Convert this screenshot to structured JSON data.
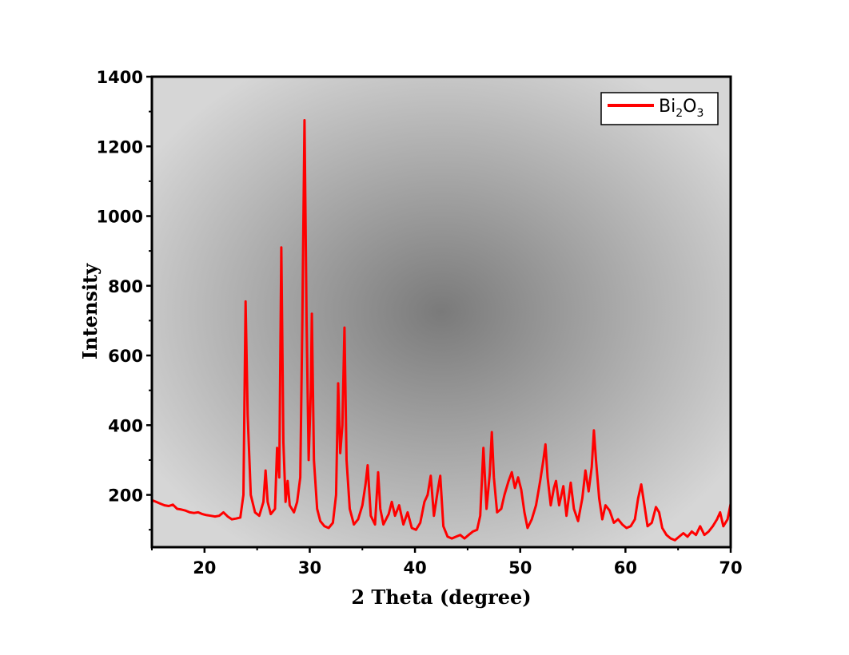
{
  "colors": {
    "series": "#ff0000",
    "axes": "#000000",
    "plot_bg_center": "#7a7a7a",
    "plot_bg_edge": "#d6d6d6"
  },
  "chart_data": {
    "type": "line",
    "title": "",
    "xlabel": "2 Theta (degree)",
    "ylabel": "Intensity",
    "xlim": [
      15,
      70
    ],
    "ylim": [
      50,
      1400
    ],
    "xticks": [
      20,
      30,
      40,
      50,
      60,
      70
    ],
    "xtick_labels": [
      "20",
      "30",
      "40",
      "50",
      "60",
      "70"
    ],
    "yticks": [
      200,
      400,
      600,
      800,
      1000,
      1200,
      1400
    ],
    "ytick_labels": [
      "200",
      "400",
      "600",
      "800",
      "1000",
      "1200",
      "1400"
    ],
    "grid": false,
    "legend": {
      "position": "top-right",
      "label_main": "Bi",
      "sub1": "2",
      "mid": "O",
      "sub2": "3"
    },
    "series": [
      {
        "name": "Bi2O3",
        "color": "#ff0000",
        "points": [
          [
            15.0,
            185
          ],
          [
            15.4,
            180
          ],
          [
            15.8,
            175
          ],
          [
            16.2,
            170
          ],
          [
            16.6,
            168
          ],
          [
            17.0,
            172
          ],
          [
            17.4,
            160
          ],
          [
            17.8,
            158
          ],
          [
            18.2,
            155
          ],
          [
            18.6,
            150
          ],
          [
            19.0,
            148
          ],
          [
            19.4,
            150
          ],
          [
            19.8,
            145
          ],
          [
            20.2,
            142
          ],
          [
            20.6,
            140
          ],
          [
            21.0,
            138
          ],
          [
            21.4,
            140
          ],
          [
            21.8,
            150
          ],
          [
            22.2,
            138
          ],
          [
            22.6,
            130
          ],
          [
            23.0,
            132
          ],
          [
            23.4,
            135
          ],
          [
            23.7,
            200
          ],
          [
            23.9,
            755
          ],
          [
            24.1,
            430
          ],
          [
            24.4,
            200
          ],
          [
            24.8,
            150
          ],
          [
            25.2,
            140
          ],
          [
            25.6,
            180
          ],
          [
            25.8,
            270
          ],
          [
            26.0,
            180
          ],
          [
            26.3,
            145
          ],
          [
            26.7,
            160
          ],
          [
            26.9,
            335
          ],
          [
            27.1,
            250
          ],
          [
            27.3,
            910
          ],
          [
            27.5,
            350
          ],
          [
            27.7,
            180
          ],
          [
            27.9,
            240
          ],
          [
            28.1,
            170
          ],
          [
            28.5,
            150
          ],
          [
            28.8,
            180
          ],
          [
            29.1,
            250
          ],
          [
            29.3,
            700
          ],
          [
            29.5,
            1275
          ],
          [
            29.7,
            700
          ],
          [
            29.9,
            300
          ],
          [
            30.1,
            500
          ],
          [
            30.2,
            720
          ],
          [
            30.4,
            300
          ],
          [
            30.7,
            160
          ],
          [
            31.0,
            125
          ],
          [
            31.4,
            110
          ],
          [
            31.8,
            105
          ],
          [
            32.2,
            120
          ],
          [
            32.5,
            200
          ],
          [
            32.7,
            520
          ],
          [
            32.9,
            320
          ],
          [
            33.1,
            400
          ],
          [
            33.3,
            680
          ],
          [
            33.5,
            300
          ],
          [
            33.8,
            160
          ],
          [
            34.2,
            115
          ],
          [
            34.6,
            130
          ],
          [
            35.0,
            170
          ],
          [
            35.3,
            230
          ],
          [
            35.5,
            285
          ],
          [
            35.8,
            140
          ],
          [
            36.2,
            115
          ],
          [
            36.5,
            265
          ],
          [
            36.7,
            160
          ],
          [
            37.0,
            115
          ],
          [
            37.5,
            145
          ],
          [
            37.8,
            180
          ],
          [
            38.1,
            140
          ],
          [
            38.5,
            170
          ],
          [
            38.9,
            115
          ],
          [
            39.3,
            150
          ],
          [
            39.7,
            105
          ],
          [
            40.1,
            100
          ],
          [
            40.5,
            120
          ],
          [
            40.9,
            180
          ],
          [
            41.2,
            200
          ],
          [
            41.5,
            255
          ],
          [
            41.8,
            140
          ],
          [
            42.2,
            220
          ],
          [
            42.4,
            255
          ],
          [
            42.7,
            110
          ],
          [
            43.1,
            80
          ],
          [
            43.5,
            75
          ],
          [
            43.9,
            80
          ],
          [
            44.3,
            85
          ],
          [
            44.7,
            75
          ],
          [
            45.1,
            85
          ],
          [
            45.5,
            95
          ],
          [
            45.9,
            100
          ],
          [
            46.2,
            140
          ],
          [
            46.5,
            335
          ],
          [
            46.8,
            160
          ],
          [
            47.1,
            260
          ],
          [
            47.3,
            380
          ],
          [
            47.5,
            250
          ],
          [
            47.8,
            150
          ],
          [
            48.2,
            160
          ],
          [
            48.5,
            200
          ],
          [
            48.9,
            240
          ],
          [
            49.2,
            265
          ],
          [
            49.5,
            220
          ],
          [
            49.8,
            250
          ],
          [
            50.1,
            215
          ],
          [
            50.4,
            150
          ],
          [
            50.7,
            105
          ],
          [
            51.1,
            130
          ],
          [
            51.5,
            170
          ],
          [
            51.9,
            240
          ],
          [
            52.2,
            300
          ],
          [
            52.4,
            345
          ],
          [
            52.6,
            250
          ],
          [
            52.9,
            170
          ],
          [
            53.2,
            220
          ],
          [
            53.4,
            240
          ],
          [
            53.7,
            170
          ],
          [
            54.1,
            225
          ],
          [
            54.4,
            140
          ],
          [
            54.8,
            235
          ],
          [
            55.1,
            160
          ],
          [
            55.5,
            125
          ],
          [
            55.9,
            190
          ],
          [
            56.2,
            270
          ],
          [
            56.5,
            210
          ],
          [
            56.8,
            280
          ],
          [
            57.0,
            385
          ],
          [
            57.2,
            300
          ],
          [
            57.5,
            190
          ],
          [
            57.8,
            130
          ],
          [
            58.1,
            170
          ],
          [
            58.5,
            155
          ],
          [
            58.9,
            120
          ],
          [
            59.3,
            130
          ],
          [
            59.7,
            115
          ],
          [
            60.1,
            105
          ],
          [
            60.5,
            110
          ],
          [
            60.9,
            130
          ],
          [
            61.2,
            190
          ],
          [
            61.5,
            230
          ],
          [
            61.8,
            170
          ],
          [
            62.1,
            110
          ],
          [
            62.5,
            120
          ],
          [
            62.9,
            165
          ],
          [
            63.2,
            150
          ],
          [
            63.5,
            105
          ],
          [
            63.9,
            85
          ],
          [
            64.3,
            75
          ],
          [
            64.7,
            70
          ],
          [
            65.1,
            80
          ],
          [
            65.5,
            90
          ],
          [
            65.9,
            80
          ],
          [
            66.3,
            95
          ],
          [
            66.7,
            85
          ],
          [
            67.1,
            110
          ],
          [
            67.5,
            85
          ],
          [
            67.9,
            95
          ],
          [
            68.3,
            110
          ],
          [
            68.7,
            130
          ],
          [
            69.0,
            150
          ],
          [
            69.3,
            110
          ],
          [
            69.7,
            130
          ],
          [
            70.0,
            175
          ]
        ]
      }
    ]
  }
}
